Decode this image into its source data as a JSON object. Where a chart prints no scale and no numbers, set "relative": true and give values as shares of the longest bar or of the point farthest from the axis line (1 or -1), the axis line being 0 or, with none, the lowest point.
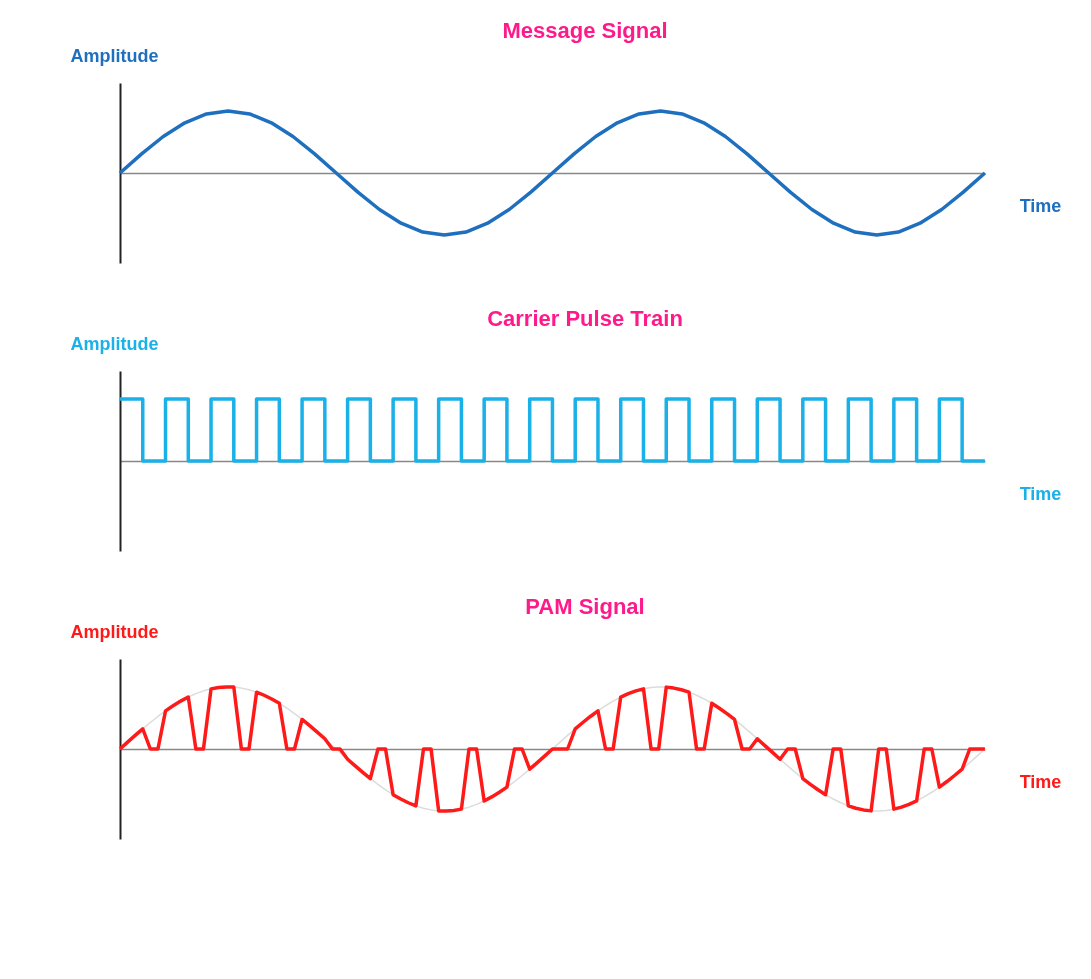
{
  "chart_data": [
    {
      "type": "line",
      "title": "Message Signal",
      "xlabel": "Time",
      "ylabel": "Amplitude",
      "relative": true,
      "categories": [
        null,
        null,
        null,
        null,
        null,
        null,
        null,
        null,
        null,
        null,
        null,
        null,
        null,
        null,
        null,
        null,
        null,
        null,
        null,
        null,
        null,
        null,
        null,
        null,
        null,
        null,
        null,
        null,
        null,
        null,
        null,
        null,
        null,
        null,
        null,
        null,
        null,
        null,
        null,
        null,
        null
      ],
      "series": [
        {
          "color": "#1f6fbf",
          "values": [
            0,
            0.309,
            0.588,
            0.809,
            0.951,
            1,
            0.951,
            0.809,
            0.588,
            0.309,
            0,
            -0.309,
            -0.588,
            -0.809,
            -0.951,
            -1,
            -0.951,
            -0.809,
            -0.588,
            -0.309,
            0,
            0.309,
            0.588,
            0.809,
            0.951,
            1,
            0.951,
            0.809,
            0.588,
            0.309,
            0,
            -0.309,
            -0.588,
            -0.809,
            -0.951,
            -1,
            -0.951,
            -0.809,
            -0.588,
            -0.309,
            0
          ]
        }
      ]
    },
    {
      "type": "step",
      "title": "Carrier Pulse Train",
      "xlabel": "Time",
      "ylabel": "Amplitude",
      "relative": true,
      "categories": [
        null,
        null,
        null,
        null,
        null,
        null,
        null,
        null,
        null,
        null,
        null,
        null,
        null,
        null,
        null,
        null,
        null,
        null,
        null,
        null,
        null,
        null,
        null,
        null,
        null,
        null,
        null,
        null,
        null,
        null,
        null,
        null,
        null,
        null,
        null,
        null,
        null,
        null,
        null
      ],
      "series": [
        {
          "color": "#1ab0e8",
          "values": [
            1,
            0,
            1,
            0,
            1,
            0,
            1,
            0,
            1,
            0,
            1,
            0,
            1,
            0,
            1,
            0,
            1,
            0,
            1,
            0,
            1,
            0,
            1,
            0,
            1,
            0,
            1,
            0,
            1,
            0,
            1,
            0,
            1,
            0,
            1,
            0,
            1,
            0,
            0
          ]
        }
      ]
    },
    {
      "type": "line",
      "title": "PAM Signal",
      "xlabel": "Time",
      "ylabel": "Amplitude",
      "relative": true,
      "categories": [
        null,
        null,
        null,
        null,
        null,
        null,
        null,
        null,
        null,
        null,
        null,
        null,
        null,
        null,
        null,
        null,
        null,
        null,
        null,
        null,
        null,
        null,
        null,
        null,
        null,
        null,
        null,
        null,
        null,
        null,
        null,
        null,
        null,
        null,
        null,
        null,
        null,
        null,
        null,
        null,
        null,
        null,
        null,
        null,
        null,
        null,
        null,
        null,
        null,
        null,
        null,
        null,
        null,
        null,
        null,
        null,
        null,
        null,
        null,
        null,
        null,
        null,
        null,
        null,
        null,
        null,
        null,
        null,
        null,
        null,
        null,
        null,
        null,
        null,
        null,
        null,
        null,
        null,
        null,
        null,
        null,
        null,
        null,
        null,
        null,
        null,
        null,
        null,
        null,
        null,
        null,
        null,
        null,
        null,
        null,
        null,
        null,
        null,
        null,
        null,
        null,
        null,
        null,
        null,
        null,
        null,
        null,
        null,
        null,
        null,
        null,
        null,
        null,
        null,
        null
      ],
      "series": [
        {
          "color": "#dcdcdc",
          "values": [
            0,
            0.11,
            0.219,
            0.325,
            0.427,
            0.524,
            0.614,
            0.697,
            0.772,
            0.837,
            0.892,
            0.937,
            0.969,
            0.991,
            1.0,
            0.997,
            0.981,
            0.954,
            0.916,
            0.866,
            0.806,
            0.736,
            0.657,
            0.57,
            0.476,
            0.376,
            0.272,
            0.165,
            0.055,
            -0.055,
            -0.165,
            -0.272,
            -0.376,
            -0.476,
            -0.57,
            -0.657,
            -0.736,
            -0.806,
            -0.866,
            -0.916,
            -0.954,
            -0.981,
            -0.997,
            -1.0,
            -0.991,
            -0.969,
            -0.937,
            -0.892,
            -0.837,
            -0.772,
            -0.697,
            -0.614,
            -0.524,
            -0.427,
            -0.325,
            -0.219,
            -0.11,
            0,
            0.11,
            0.219,
            0.325,
            0.427,
            0.524,
            0.614,
            0.697,
            0.772,
            0.837,
            0.892,
            0.937,
            0.969,
            0.991,
            1.0,
            0.997,
            0.981,
            0.954,
            0.916,
            0.866,
            0.806,
            0.736,
            0.657,
            0.57,
            0.476,
            0.376,
            0.272,
            0.165,
            0.055,
            -0.055,
            -0.165,
            -0.272,
            -0.376,
            -0.476,
            -0.57,
            -0.657,
            -0.736,
            -0.806,
            -0.866,
            -0.916,
            -0.954,
            -0.981,
            -0.997,
            -1.0,
            -0.991,
            -0.969,
            -0.937,
            -0.892,
            -0.837,
            -0.772,
            -0.697,
            -0.614,
            -0.524,
            -0.427,
            -0.325,
            -0.219,
            -0.11,
            0
          ]
        },
        {
          "color": "#ff1a1a",
          "values": [
            0,
            0.11,
            0.219,
            0.325,
            0,
            0,
            0.614,
            0.697,
            0.772,
            0.837,
            0,
            0,
            0.969,
            0.991,
            1.0,
            0.997,
            0,
            0,
            0.916,
            0.866,
            0.806,
            0.736,
            0,
            0,
            0.476,
            0.376,
            0.272,
            0.165,
            0,
            0,
            -0.165,
            -0.272,
            -0.376,
            -0.476,
            0,
            0,
            -0.736,
            -0.806,
            -0.866,
            -0.916,
            0,
            0,
            -0.997,
            -1.0,
            -0.991,
            -0.969,
            0,
            0,
            -0.837,
            -0.772,
            -0.697,
            -0.614,
            0,
            0,
            -0.325,
            -0.219,
            -0.11,
            0,
            0,
            0,
            0.325,
            0.427,
            0.524,
            0.614,
            0,
            0,
            0.837,
            0.892,
            0.937,
            0.969,
            0,
            0,
            0.997,
            0.981,
            0.954,
            0.916,
            0,
            0,
            0.736,
            0.657,
            0.57,
            0.476,
            0,
            0,
            0.165,
            0.055,
            -0.055,
            -0.165,
            0,
            0,
            -0.476,
            -0.57,
            -0.657,
            -0.736,
            0,
            0,
            -0.916,
            -0.954,
            -0.981,
            -0.997,
            0,
            0,
            -0.969,
            -0.937,
            -0.892,
            -0.837,
            0,
            0,
            -0.614,
            -0.524,
            -0.427,
            -0.325,
            0,
            0,
            0
          ]
        }
      ]
    }
  ]
}
